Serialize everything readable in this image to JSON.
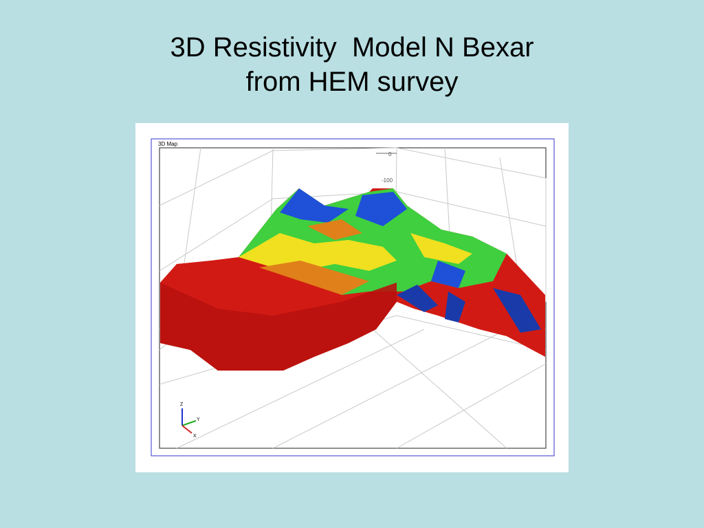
{
  "slide": {
    "title_lines": [
      "3D Resistivity  Model N Bexar",
      "from HEM survey"
    ],
    "figure": {
      "panel_label": "3D Map",
      "depth_labels": [
        "0",
        "-100"
      ],
      "axes": [
        "Z",
        "Y",
        "X"
      ]
    }
  }
}
